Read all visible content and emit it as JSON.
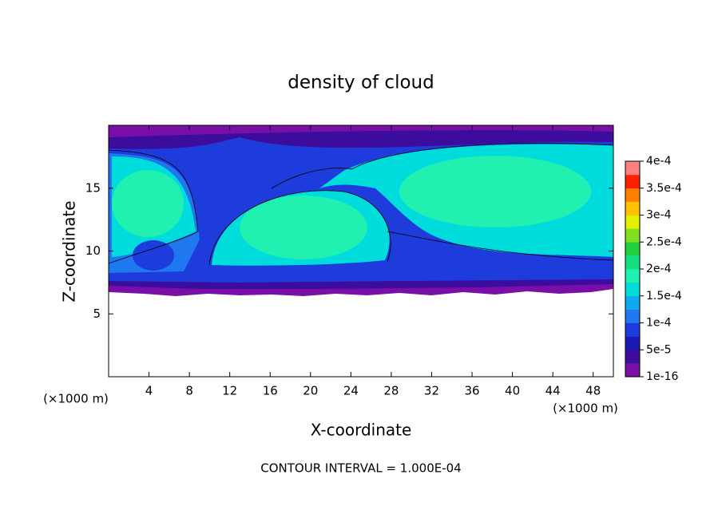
{
  "chart_data": {
    "type": "contour",
    "title": "density of cloud",
    "x_label": "X-coordinate",
    "y_label": "Z-coordinate",
    "x_unit": "(×1000 m)",
    "y_unit": "(×1000 m)",
    "note": "CONTOUR INTERVAL = 1.000E-04",
    "xlim": [
      0,
      50
    ],
    "ylim": [
      0,
      20
    ],
    "xticks": [
      4,
      8,
      12,
      16,
      20,
      24,
      28,
      32,
      36,
      40,
      44,
      48
    ],
    "yticks": [
      5,
      10,
      15
    ],
    "colorbar_lim": [
      1e-16,
      0.0004
    ],
    "colorbar_ticks": [
      {
        "value": 1e-16,
        "label": "1e-16"
      },
      {
        "value": 5e-05,
        "label": "5e-5"
      },
      {
        "value": 0.0001,
        "label": "1e-4"
      },
      {
        "value": 0.00015,
        "label": "1.5e-4"
      },
      {
        "value": 0.0002,
        "label": "2e-4"
      },
      {
        "value": 0.00025,
        "label": "2.5e-4"
      },
      {
        "value": 0.0003,
        "label": "3e-4"
      },
      {
        "value": 0.00035,
        "label": "3.5e-4"
      },
      {
        "value": 0.0004,
        "label": "4e-4"
      }
    ],
    "colors": [
      "#7a0ea8",
      "#3c0c9c",
      "#1a1ab4",
      "#1e3cdc",
      "#1e78f0",
      "#10a8f0",
      "#00dcdc",
      "#20f0b0",
      "#10e080",
      "#20d040",
      "#80e020",
      "#e0f000",
      "#ffc000",
      "#ff8000",
      "#ff2000",
      "#ff8080"
    ]
  }
}
